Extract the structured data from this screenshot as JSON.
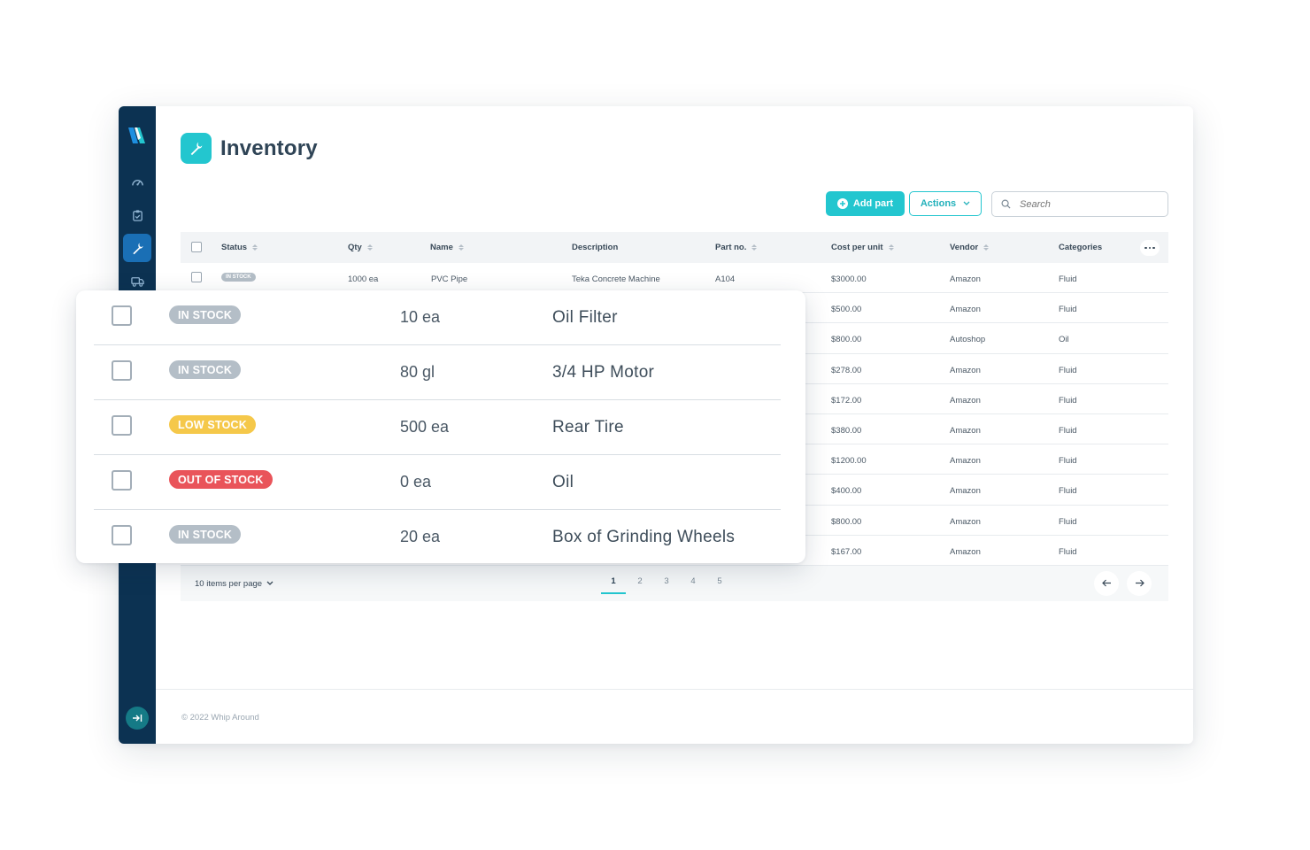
{
  "app": {
    "page_title": "Inventory",
    "copyright": "© 2022 Whip Around"
  },
  "colors": {
    "accent": "#23c6cf",
    "sidebar": "#0c3252",
    "in_stock": "#b4bec7",
    "low_stock": "#f5c84a",
    "out_of_stock": "#e9545a"
  },
  "sidebar": {
    "items": [
      {
        "icon": "dashboard-icon"
      },
      {
        "icon": "clipboard-icon"
      },
      {
        "icon": "wrench-icon",
        "active": true
      },
      {
        "icon": "truck-icon"
      }
    ],
    "collapse_icon": "collapse-arrow-icon"
  },
  "toolbar": {
    "add_label": "Add part",
    "actions_label": "Actions",
    "search_placeholder": "Search"
  },
  "table": {
    "headers": {
      "status": "Status",
      "qty": "Qty",
      "name": "Name",
      "description": "Description",
      "part_no": "Part no.",
      "cost": "Cost per unit",
      "vendor": "Vendor",
      "categories": "Categories"
    },
    "first_row": {
      "status": "IN STOCK",
      "qty": "1000 ea",
      "name": "PVC Pipe",
      "description": "Teka Concrete Machine",
      "part_no": "A104",
      "cost": "$3000.00",
      "vendor": "Amazon",
      "category": "Fluid"
    },
    "rows": [
      {
        "cost": "$500.00",
        "vendor": "Amazon",
        "category": "Fluid"
      },
      {
        "cost": "$800.00",
        "vendor": "Autoshop",
        "category": "Oil"
      },
      {
        "cost": "$278.00",
        "vendor": "Amazon",
        "category": "Fluid"
      },
      {
        "cost": "$172.00",
        "vendor": "Amazon",
        "category": "Fluid"
      },
      {
        "cost": "$380.00",
        "vendor": "Amazon",
        "category": "Fluid"
      },
      {
        "cost": "$1200.00",
        "vendor": "Amazon",
        "category": "Fluid"
      },
      {
        "cost": "$400.00",
        "vendor": "Amazon",
        "category": "Fluid"
      },
      {
        "cost": "$800.00",
        "vendor": "Amazon",
        "category": "Fluid"
      },
      {
        "cost": "$167.00",
        "vendor": "Amazon",
        "category": "Fluid"
      }
    ]
  },
  "pagination": {
    "per_page": "10 items per page",
    "pages": [
      "1",
      "2",
      "3",
      "4",
      "5"
    ],
    "current": "1"
  },
  "overlay": {
    "rows": [
      {
        "status": "IN STOCK",
        "status_kind": "in",
        "qty": "10 ea",
        "name": "Oil Filter"
      },
      {
        "status": "IN STOCK",
        "status_kind": "in",
        "qty": "80 gl",
        "name": "3/4 HP Motor"
      },
      {
        "status": "LOW STOCK",
        "status_kind": "low",
        "qty": "500 ea",
        "name": "Rear Tire"
      },
      {
        "status": "OUT OF STOCK",
        "status_kind": "out",
        "qty": "0 ea",
        "name": "Oil"
      },
      {
        "status": "IN STOCK",
        "status_kind": "in",
        "qty": "20 ea",
        "name": "Box of Grinding Wheels"
      }
    ]
  }
}
